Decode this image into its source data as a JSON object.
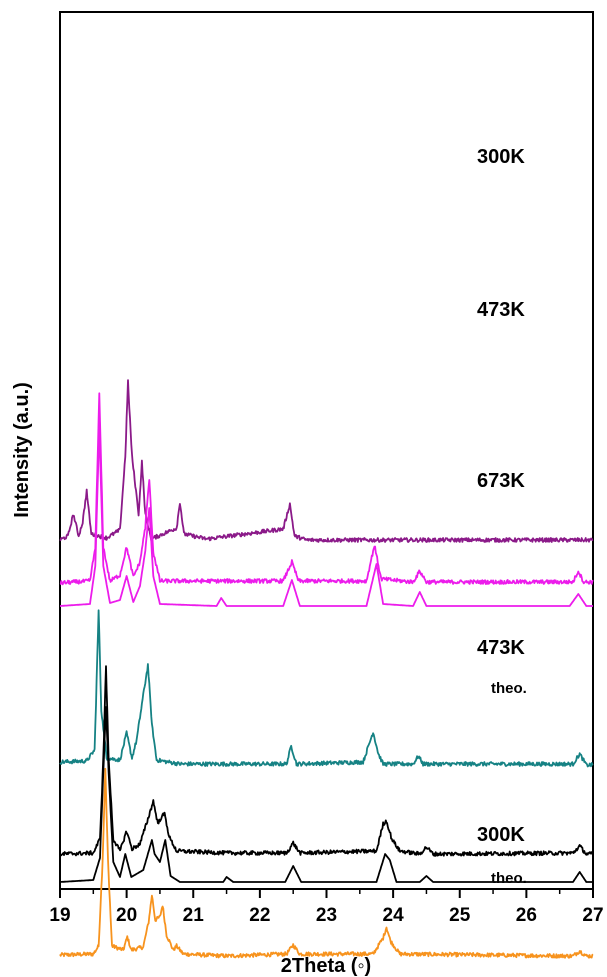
{
  "chart_data": {
    "type": "line",
    "title": "",
    "xlabel": "2Theta (◦)",
    "ylabel": "Intensity (a.u.)",
    "xlim": [
      19,
      27
    ],
    "x_ticks": [
      "19",
      "20",
      "21",
      "22",
      "23",
      "24",
      "25",
      "26",
      "27"
    ],
    "y_ticks": [],
    "grid": false,
    "series": [
      {
        "name": "300K",
        "color": "#f7931e",
        "offset": 960,
        "points": [
          [
            19.0,
            5
          ],
          [
            19.5,
            6
          ],
          [
            19.58,
            14
          ],
          [
            19.64,
            100
          ],
          [
            19.68,
            190
          ],
          [
            19.72,
            100
          ],
          [
            19.78,
            14
          ],
          [
            19.95,
            10
          ],
          [
            20.01,
            23
          ],
          [
            20.07,
            10
          ],
          [
            20.25,
            13
          ],
          [
            20.33,
            38
          ],
          [
            20.38,
            65
          ],
          [
            20.43,
            40
          ],
          [
            20.5,
            43
          ],
          [
            20.54,
            55
          ],
          [
            20.6,
            25
          ],
          [
            20.7,
            10
          ],
          [
            20.75,
            14
          ],
          [
            20.85,
            6
          ],
          [
            21.5,
            4
          ],
          [
            22.4,
            6
          ],
          [
            22.5,
            15
          ],
          [
            22.6,
            6
          ],
          [
            23.7,
            6
          ],
          [
            23.85,
            22
          ],
          [
            23.9,
            33
          ],
          [
            23.96,
            19
          ],
          [
            24.1,
            6
          ],
          [
            26.7,
            4
          ],
          [
            26.8,
            9
          ],
          [
            26.9,
            4
          ],
          [
            27.0,
            4
          ]
        ]
      },
      {
        "name": "473K",
        "color": "#168284",
        "offset": 770,
        "points": [
          [
            19.0,
            8
          ],
          [
            19.4,
            9
          ],
          [
            19.52,
            20
          ],
          [
            19.58,
            160
          ],
          [
            19.62,
            60
          ],
          [
            19.7,
            12
          ],
          [
            19.9,
            10
          ],
          [
            20.0,
            37
          ],
          [
            20.08,
            12
          ],
          [
            20.15,
            30
          ],
          [
            20.25,
            75
          ],
          [
            20.32,
            105
          ],
          [
            20.38,
            45
          ],
          [
            20.45,
            10
          ],
          [
            20.8,
            6
          ],
          [
            22.4,
            6
          ],
          [
            22.47,
            24
          ],
          [
            22.55,
            6
          ],
          [
            23.55,
            8
          ],
          [
            23.7,
            38
          ],
          [
            23.78,
            16
          ],
          [
            23.85,
            6
          ],
          [
            24.3,
            6
          ],
          [
            24.38,
            14
          ],
          [
            24.45,
            6
          ],
          [
            26.7,
            6
          ],
          [
            26.8,
            16
          ],
          [
            26.9,
            5
          ],
          [
            27.0,
            5
          ]
        ]
      },
      {
        "name": "673K",
        "color": "#8b1a89",
        "offset": 544,
        "points": [
          [
            19.0,
            4
          ],
          [
            19.12,
            8
          ],
          [
            19.2,
            30
          ],
          [
            19.28,
            8
          ],
          [
            19.34,
            22
          ],
          [
            19.4,
            53
          ],
          [
            19.47,
            10
          ],
          [
            19.7,
            6
          ],
          [
            19.9,
            14
          ],
          [
            19.98,
            88
          ],
          [
            20.02,
            162
          ],
          [
            20.08,
            88
          ],
          [
            20.18,
            30
          ],
          [
            20.23,
            82
          ],
          [
            20.28,
            30
          ],
          [
            20.37,
            5
          ],
          [
            20.75,
            16
          ],
          [
            20.8,
            42
          ],
          [
            20.86,
            10
          ],
          [
            21.2,
            5
          ],
          [
            22.35,
            15
          ],
          [
            22.45,
            40
          ],
          [
            22.52,
            8
          ],
          [
            22.7,
            4
          ],
          [
            27.0,
            4
          ]
        ]
      },
      {
        "name": "473K",
        "color": "#ec1ceb",
        "offset": 587,
        "points": [
          [
            19.0,
            4
          ],
          [
            19.45,
            6
          ],
          [
            19.53,
            40
          ],
          [
            19.59,
            192
          ],
          [
            19.65,
            40
          ],
          [
            19.75,
            6
          ],
          [
            19.9,
            12
          ],
          [
            20.0,
            40
          ],
          [
            20.1,
            10
          ],
          [
            20.2,
            25
          ],
          [
            20.28,
            60
          ],
          [
            20.34,
            108
          ],
          [
            20.4,
            35
          ],
          [
            20.5,
            6
          ],
          [
            22.35,
            6
          ],
          [
            22.48,
            25
          ],
          [
            22.58,
            6
          ],
          [
            23.6,
            6
          ],
          [
            23.72,
            42
          ],
          [
            23.82,
            8
          ],
          [
            24.3,
            5
          ],
          [
            24.4,
            16
          ],
          [
            24.5,
            5
          ],
          [
            26.7,
            5
          ],
          [
            26.78,
            16
          ],
          [
            26.86,
            5
          ],
          [
            27.0,
            5
          ]
        ]
      },
      {
        "name": "theo.",
        "color": "#ec1ceb",
        "offset": 606,
        "points": [
          [
            19.0,
            0
          ],
          [
            19.45,
            2
          ],
          [
            19.53,
            40
          ],
          [
            19.59,
            180
          ],
          [
            19.65,
            40
          ],
          [
            19.75,
            3
          ],
          [
            19.9,
            6
          ],
          [
            20.0,
            30
          ],
          [
            20.1,
            4
          ],
          [
            20.2,
            20
          ],
          [
            20.28,
            55
          ],
          [
            20.34,
            98
          ],
          [
            20.4,
            30
          ],
          [
            20.5,
            2
          ],
          [
            21.35,
            0
          ],
          [
            21.42,
            8
          ],
          [
            21.5,
            0
          ],
          [
            22.35,
            0
          ],
          [
            22.48,
            26
          ],
          [
            22.6,
            0
          ],
          [
            23.6,
            0
          ],
          [
            23.75,
            42
          ],
          [
            23.85,
            2
          ],
          [
            24.3,
            0
          ],
          [
            24.4,
            14
          ],
          [
            24.5,
            0
          ],
          [
            26.65,
            0
          ],
          [
            26.78,
            12
          ],
          [
            26.9,
            0
          ],
          [
            27.0,
            0
          ]
        ]
      },
      {
        "name": "300K",
        "color": "#000000",
        "offset": 859,
        "points": [
          [
            19.0,
            5
          ],
          [
            19.5,
            6
          ],
          [
            19.6,
            20
          ],
          [
            19.65,
            100
          ],
          [
            19.69,
            193
          ],
          [
            19.73,
            100
          ],
          [
            19.8,
            20
          ],
          [
            19.9,
            8
          ],
          [
            20.0,
            28
          ],
          [
            20.08,
            10
          ],
          [
            20.2,
            15
          ],
          [
            20.32,
            40
          ],
          [
            20.4,
            58
          ],
          [
            20.47,
            35
          ],
          [
            20.52,
            42
          ],
          [
            20.57,
            45
          ],
          [
            20.64,
            22
          ],
          [
            20.75,
            8
          ],
          [
            21.5,
            6
          ],
          [
            22.4,
            6
          ],
          [
            22.5,
            16
          ],
          [
            22.6,
            6
          ],
          [
            23.75,
            8
          ],
          [
            23.85,
            35
          ],
          [
            23.9,
            38
          ],
          [
            23.98,
            20
          ],
          [
            24.1,
            8
          ],
          [
            24.4,
            5
          ],
          [
            24.5,
            12
          ],
          [
            24.6,
            5
          ],
          [
            26.7,
            6
          ],
          [
            26.8,
            13
          ],
          [
            26.9,
            5
          ],
          [
            27.0,
            5
          ]
        ]
      },
      {
        "name": "theo.",
        "color": "#000000",
        "offset": 882,
        "points": [
          [
            19.0,
            0
          ],
          [
            19.5,
            2
          ],
          [
            19.6,
            24
          ],
          [
            19.65,
            110
          ],
          [
            19.69,
            175
          ],
          [
            19.73,
            110
          ],
          [
            19.8,
            20
          ],
          [
            19.9,
            5
          ],
          [
            19.98,
            28
          ],
          [
            20.07,
            5
          ],
          [
            20.25,
            12
          ],
          [
            20.38,
            42
          ],
          [
            20.42,
            28
          ],
          [
            20.5,
            20
          ],
          [
            20.58,
            42
          ],
          [
            20.66,
            6
          ],
          [
            20.8,
            0
          ],
          [
            21.45,
            0
          ],
          [
            21.5,
            5
          ],
          [
            21.6,
            0
          ],
          [
            22.38,
            0
          ],
          [
            22.5,
            16
          ],
          [
            22.62,
            0
          ],
          [
            23.75,
            0
          ],
          [
            23.88,
            28
          ],
          [
            23.95,
            22
          ],
          [
            24.05,
            0
          ],
          [
            24.4,
            0
          ],
          [
            24.5,
            6
          ],
          [
            24.6,
            0
          ],
          [
            26.7,
            0
          ],
          [
            26.8,
            10
          ],
          [
            26.9,
            0
          ],
          [
            27.0,
            0
          ]
        ]
      }
    ]
  },
  "labels": {
    "l300_top": "300K",
    "l473_mid": "473K",
    "l673": "673K",
    "l473_low": "473K",
    "theo_mag": "theo.",
    "l300_bot": "300K",
    "theo_blk": "theo."
  }
}
